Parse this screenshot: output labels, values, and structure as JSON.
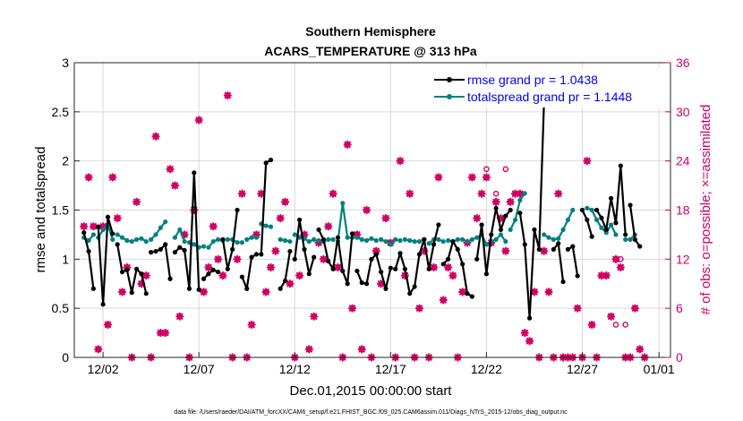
{
  "chart_data": {
    "type": "line",
    "title": "Southern Hemisphere",
    "subtitle": "ACARS_TEMPERATURE @ 313 hPa",
    "xlabel": "Dec.01,2015 00:00:00 start",
    "ylabel": "rmse and totalspread",
    "y2label": "# of obs: o=possible; ×=assimilated",
    "footer": "data file: /Users/raeder/DAI/ATM_forcXX/CAM6_setup/f.e21.FHIST_BGC.f09_025.CAM6assim.011/Diags_NTrS_2015-12/obs_diag_output.nc",
    "xlim": [
      0.5,
      31.6
    ],
    "ylim": [
      0,
      3
    ],
    "y2lim": [
      0,
      36
    ],
    "xticks": [
      {
        "value": 2,
        "label": "12/02"
      },
      {
        "value": 7,
        "label": "12/07"
      },
      {
        "value": 12,
        "label": "12/12"
      },
      {
        "value": 17,
        "label": "12/17"
      },
      {
        "value": 22,
        "label": "12/22"
      },
      {
        "value": 27,
        "label": "12/27"
      },
      {
        "value": 31,
        "label": "01/01"
      }
    ],
    "yticks": [
      "0",
      "0.5",
      "1",
      "1.5",
      "2",
      "2.5",
      "3"
    ],
    "yticks_values": [
      0,
      0.5,
      1,
      1.5,
      2,
      2.5,
      3
    ],
    "y2ticks": [
      "0",
      "6",
      "12",
      "18",
      "24",
      "30",
      "36"
    ],
    "y2ticks_values": [
      0,
      6,
      12,
      18,
      24,
      30,
      36
    ],
    "legend": {
      "location": "top-right",
      "entries": [
        "rmse grand pr = 1.0438",
        "totalspread grand pr = 1.1448"
      ]
    },
    "colors": {
      "rmse": "#000000",
      "spread": "#008080",
      "obs": "#d00063",
      "legend_text": "#0000ee"
    },
    "rmse_segments": [
      [
        [
          1.0,
          1.27
        ],
        [
          1.25,
          1.08
        ],
        [
          1.5,
          0.7
        ]
      ],
      [
        [
          1.75,
          1.33
        ],
        [
          2.0,
          0.54
        ],
        [
          2.25,
          1.43
        ],
        [
          2.5,
          1.26
        ]
      ],
      [
        [
          2.75,
          1.15
        ],
        [
          3.0,
          0.87
        ],
        [
          3.25,
          0.89
        ],
        [
          3.5,
          0.66
        ],
        [
          3.75,
          0.9
        ],
        [
          4.0,
          0.85
        ],
        [
          4.25,
          0.65
        ]
      ],
      [
        [
          4.5,
          1.07
        ],
        [
          4.75,
          1.08
        ],
        [
          5.0,
          1.1
        ],
        [
          5.25,
          1.15
        ],
        [
          5.5,
          0.8
        ]
      ],
      [
        [
          5.75,
          1.07
        ],
        [
          6.0,
          1.12
        ],
        [
          6.25,
          1.09
        ],
        [
          6.5,
          0.7
        ],
        [
          6.75,
          1.88
        ],
        [
          7.0,
          0.69
        ]
      ],
      [
        [
          7.25,
          0.8
        ],
        [
          7.5,
          0.85
        ],
        [
          7.75,
          0.89
        ],
        [
          8.0,
          0.87
        ]
      ],
      [
        [
          8.25,
          1.2
        ],
        [
          8.5,
          0.9
        ],
        [
          8.75,
          1.1
        ],
        [
          9.0,
          1.5
        ]
      ],
      [
        [
          9.25,
          0.82
        ],
        [
          9.5,
          0.7
        ],
        [
          9.75,
          1.02
        ],
        [
          10.0,
          1.05
        ]
      ],
      [
        [
          10.25,
          1.05
        ],
        [
          10.5,
          1.98
        ],
        [
          10.75,
          2.01
        ]
      ],
      [
        [
          11.25,
          0.7
        ],
        [
          11.5,
          0.78
        ],
        [
          11.75,
          1.08
        ]
      ],
      [
        [
          12.0,
          1.0
        ],
        [
          12.25,
          1.4
        ],
        [
          12.5,
          1.1
        ],
        [
          12.75,
          0.85
        ],
        [
          13.0,
          1.02
        ]
      ],
      [
        [
          13.25,
          1.3
        ],
        [
          13.5,
          1.2
        ],
        [
          13.75,
          0.98
        ],
        [
          14.0,
          0.9
        ],
        [
          14.25,
          1.22
        ],
        [
          14.5,
          0.88
        ],
        [
          14.75,
          0.75
        ],
        [
          15.0,
          1.26
        ]
      ],
      [
        [
          15.25,
          0.88
        ],
        [
          15.5,
          0.76
        ],
        [
          15.75,
          0.75
        ],
        [
          16.0,
          1.0
        ],
        [
          16.25,
          1.05
        ],
        [
          16.5,
          0.87
        ],
        [
          16.75,
          0.7
        ],
        [
          17.0,
          0.91
        ]
      ],
      [
        [
          17.25,
          0.9
        ],
        [
          17.5,
          1.06
        ],
        [
          17.75,
          0.9
        ],
        [
          18.0,
          0.65
        ],
        [
          18.25,
          0.72
        ],
        [
          18.5,
          1.05
        ],
        [
          18.75,
          1.2
        ],
        [
          19.0,
          0.9
        ],
        [
          19.25,
          1.15
        ],
        [
          19.5,
          1.35
        ]
      ],
      [
        [
          19.75,
          0.95
        ],
        [
          20.0,
          1.0
        ],
        [
          20.25,
          1.18
        ],
        [
          20.5,
          1.1
        ],
        [
          20.75,
          0.95
        ],
        [
          21.0,
          0.65
        ],
        [
          21.25,
          0.62
        ]
      ],
      [
        [
          21.5,
          1.0
        ],
        [
          21.75,
          1.35
        ],
        [
          22.0,
          0.85
        ],
        [
          22.25,
          1.25
        ],
        [
          22.5,
          1.52
        ],
        [
          22.75,
          1.3
        ],
        [
          23.0,
          1.44
        ],
        [
          23.25,
          1.5
        ]
      ],
      [
        [
          23.75,
          1.47
        ],
        [
          24.0,
          1.15
        ],
        [
          24.25,
          0.4
        ],
        [
          24.5,
          1.3
        ],
        [
          24.75,
          1.1
        ],
        [
          25.0,
          2.58
        ]
      ],
      [
        [
          25.5,
          1.1
        ],
        [
          25.75,
          1.16
        ],
        [
          26.0,
          0.77
        ]
      ],
      [
        [
          26.25,
          1.1
        ],
        [
          26.5,
          1.13
        ],
        [
          26.75,
          0.83
        ]
      ],
      [
        [
          27.0,
          1.5
        ],
        [
          27.25,
          1.4
        ],
        [
          27.5,
          1.23
        ]
      ],
      [
        [
          27.75,
          1.5
        ],
        [
          28.0,
          1.42
        ],
        [
          28.25,
          1.3
        ],
        [
          28.5,
          1.62
        ],
        [
          28.75,
          1.37
        ],
        [
          29.0,
          1.95
        ],
        [
          29.25,
          1.25
        ]
      ],
      [
        [
          29.5,
          1.55
        ],
        [
          29.75,
          1.2
        ],
        [
          30.0,
          1.13
        ]
      ]
    ],
    "spread_segments": [
      [
        [
          1.0,
          1.22
        ],
        [
          1.25,
          1.19
        ],
        [
          1.5,
          1.25
        ]
      ],
      [
        [
          1.75,
          1.22
        ],
        [
          2.0,
          1.3
        ],
        [
          2.25,
          1.35
        ],
        [
          2.5,
          1.2
        ]
      ],
      [
        [
          2.75,
          1.25
        ],
        [
          3.0,
          1.22
        ],
        [
          3.25,
          1.19
        ],
        [
          3.5,
          1.18
        ],
        [
          3.75,
          1.2
        ],
        [
          4.0,
          1.21
        ],
        [
          4.25,
          1.18
        ]
      ],
      [
        [
          4.5,
          1.2
        ],
        [
          4.75,
          1.25
        ],
        [
          5.0,
          1.32
        ],
        [
          5.25,
          1.38
        ]
      ],
      [
        [
          5.75,
          1.22
        ],
        [
          6.0,
          1.3
        ],
        [
          6.25,
          1.18
        ]
      ],
      [
        [
          6.5,
          1.17
        ],
        [
          6.75,
          1.15
        ],
        [
          7.0,
          1.12
        ],
        [
          7.25,
          1.13
        ]
      ],
      [
        [
          7.5,
          1.12
        ],
        [
          7.75,
          1.18
        ],
        [
          8.0,
          1.2
        ],
        [
          8.25,
          1.19
        ]
      ],
      [
        [
          8.5,
          1.2
        ],
        [
          8.75,
          1.2
        ],
        [
          9.0,
          1.17
        ],
        [
          9.25,
          1.17
        ]
      ],
      [
        [
          9.5,
          1.2
        ],
        [
          9.75,
          1.22
        ],
        [
          10.0,
          1.22
        ]
      ],
      [
        [
          10.25,
          1.36
        ],
        [
          10.5,
          1.34
        ],
        [
          10.75,
          1.33
        ]
      ],
      [
        [
          11.25,
          1.2
        ],
        [
          11.5,
          1.19
        ],
        [
          11.75,
          1.18
        ]
      ],
      [
        [
          12.0,
          1.25
        ],
        [
          12.25,
          1.22
        ],
        [
          12.5,
          1.21
        ],
        [
          12.75,
          1.18
        ],
        [
          13.0,
          1.2
        ]
      ],
      [
        [
          13.25,
          1.19
        ],
        [
          13.5,
          1.18
        ],
        [
          13.75,
          1.2
        ],
        [
          14.0,
          1.2
        ]
      ],
      [
        [
          14.25,
          1.18
        ],
        [
          14.5,
          1.57
        ],
        [
          14.75,
          1.22
        ],
        [
          15.0,
          1.22
        ]
      ],
      [
        [
          15.25,
          1.22
        ],
        [
          15.5,
          1.2
        ],
        [
          15.75,
          1.19
        ],
        [
          16.0,
          1.21
        ],
        [
          16.25,
          1.19
        ]
      ],
      [
        [
          16.5,
          1.2
        ],
        [
          16.75,
          1.18
        ],
        [
          17.0,
          1.15
        ],
        [
          17.25,
          1.2
        ],
        [
          17.5,
          1.19
        ]
      ],
      [
        [
          17.75,
          1.2
        ],
        [
          18.0,
          1.19
        ],
        [
          18.25,
          1.18
        ],
        [
          18.5,
          1.18
        ],
        [
          18.75,
          1.2
        ]
      ],
      [
        [
          19.0,
          1.16
        ],
        [
          19.25,
          1.2
        ],
        [
          19.5,
          1.2
        ],
        [
          19.75,
          1.18
        ]
      ],
      [
        [
          20.0,
          1.19
        ],
        [
          20.25,
          1.18
        ],
        [
          20.5,
          1.2
        ],
        [
          20.75,
          1.2
        ]
      ],
      [
        [
          21.0,
          1.18
        ],
        [
          21.25,
          1.2
        ],
        [
          21.5,
          1.22
        ],
        [
          21.75,
          1.25
        ],
        [
          22.0,
          1.15
        ]
      ],
      [
        [
          22.25,
          1.18
        ],
        [
          22.5,
          1.2
        ],
        [
          22.75,
          1.25
        ],
        [
          23.0,
          1.18
        ]
      ],
      [
        [
          23.25,
          1.3
        ],
        [
          23.5,
          1.4
        ],
        [
          23.75,
          1.6
        ],
        [
          24.0,
          1.67
        ]
      ],
      [
        [
          25.0,
          1.25
        ],
        [
          25.25,
          1.22
        ],
        [
          25.5,
          1.2
        ],
        [
          25.75,
          1.21
        ],
        [
          26.0,
          1.3
        ],
        [
          26.25,
          1.4
        ],
        [
          26.5,
          1.5
        ]
      ],
      [
        [
          27.25,
          1.52
        ],
        [
          27.5,
          1.5
        ],
        [
          27.75,
          1.4
        ],
        [
          28.0,
          1.32
        ],
        [
          28.25,
          1.27
        ],
        [
          28.5,
          1.35
        ],
        [
          28.75,
          1.25
        ]
      ],
      [
        [
          29.25,
          1.2
        ],
        [
          29.5,
          1.2
        ],
        [
          29.75,
          1.25
        ]
      ]
    ],
    "obs_assimilated": [
      [
        1.0,
        16
      ],
      [
        1.25,
        22
      ],
      [
        1.5,
        16
      ],
      [
        1.75,
        1
      ],
      [
        2.0,
        16
      ],
      [
        2.25,
        4
      ],
      [
        2.5,
        22
      ],
      [
        2.75,
        17
      ],
      [
        3.0,
        8
      ],
      [
        3.25,
        11
      ],
      [
        3.5,
        0
      ],
      [
        3.75,
        19
      ],
      [
        4.0,
        9
      ],
      [
        4.25,
        10
      ],
      [
        4.5,
        0
      ],
      [
        4.75,
        27
      ],
      [
        5.0,
        3
      ],
      [
        5.25,
        3
      ],
      [
        5.5,
        23
      ],
      [
        5.75,
        21
      ],
      [
        6.0,
        5
      ],
      [
        6.25,
        15
      ],
      [
        6.5,
        0
      ],
      [
        6.75,
        18
      ],
      [
        7.0,
        29
      ],
      [
        7.25,
        8
      ],
      [
        7.5,
        11
      ],
      [
        7.75,
        16
      ],
      [
        8.0,
        12
      ],
      [
        8.25,
        10
      ],
      [
        8.5,
        32
      ],
      [
        8.75,
        0
      ],
      [
        9.0,
        12
      ],
      [
        9.25,
        20
      ],
      [
        9.5,
        0
      ],
      [
        9.75,
        4
      ],
      [
        10.0,
        15
      ],
      [
        10.25,
        20
      ],
      [
        10.5,
        8
      ],
      [
        10.75,
        11
      ],
      [
        11.0,
        13
      ],
      [
        11.25,
        17
      ],
      [
        11.5,
        19
      ],
      [
        11.75,
        9
      ],
      [
        12.0,
        0
      ],
      [
        12.25,
        10
      ],
      [
        12.5,
        15
      ],
      [
        12.75,
        1
      ],
      [
        13.0,
        5
      ],
      [
        13.25,
        14
      ],
      [
        13.5,
        12
      ],
      [
        13.75,
        16
      ],
      [
        14.0,
        20
      ],
      [
        14.25,
        11
      ],
      [
        14.5,
        0
      ],
      [
        14.75,
        26
      ],
      [
        15.0,
        6
      ],
      [
        15.25,
        15
      ],
      [
        15.5,
        1
      ],
      [
        15.75,
        18
      ],
      [
        16.0,
        0
      ],
      [
        16.25,
        13
      ],
      [
        16.5,
        9
      ],
      [
        16.75,
        17
      ],
      [
        17.0,
        14
      ],
      [
        17.25,
        0
      ],
      [
        17.5,
        24
      ],
      [
        17.75,
        10
      ],
      [
        18.0,
        20
      ],
      [
        18.25,
        0
      ],
      [
        18.5,
        6
      ],
      [
        18.75,
        13
      ],
      [
        19.0,
        0
      ],
      [
        19.25,
        11
      ],
      [
        19.5,
        22
      ],
      [
        19.75,
        7
      ],
      [
        20.0,
        11
      ],
      [
        20.25,
        10
      ],
      [
        20.5,
        0
      ],
      [
        20.75,
        8
      ],
      [
        21.0,
        14
      ],
      [
        21.25,
        22
      ],
      [
        21.5,
        17
      ],
      [
        21.75,
        20
      ],
      [
        22.0,
        22
      ],
      [
        22.25,
        14
      ],
      [
        22.5,
        19
      ],
      [
        22.75,
        17
      ],
      [
        23.0,
        13
      ],
      [
        23.25,
        19
      ],
      [
        23.5,
        20
      ],
      [
        23.75,
        20
      ],
      [
        24.0,
        3
      ],
      [
        24.25,
        2
      ],
      [
        24.5,
        8
      ],
      [
        24.75,
        0
      ],
      [
        25.0,
        13
      ],
      [
        25.25,
        8
      ],
      [
        25.5,
        0
      ],
      [
        25.75,
        20
      ],
      [
        26.0,
        0
      ],
      [
        26.25,
        0
      ],
      [
        26.5,
        0
      ],
      [
        26.75,
        6
      ],
      [
        27.0,
        0
      ],
      [
        27.25,
        24
      ],
      [
        27.5,
        4
      ],
      [
        27.75,
        0
      ],
      [
        28.0,
        10
      ],
      [
        28.25,
        10
      ],
      [
        28.5,
        5
      ],
      [
        28.75,
        12
      ],
      [
        29.0,
        11
      ],
      [
        29.25,
        0
      ],
      [
        29.5,
        0
      ],
      [
        29.75,
        6
      ],
      [
        30.0,
        1
      ],
      [
        30.25,
        0
      ]
    ],
    "obs_possible": [
      [
        2.25,
        4
      ],
      [
        22.0,
        23
      ],
      [
        22.5,
        20
      ],
      [
        23.0,
        23
      ],
      [
        23.25,
        19
      ],
      [
        28.75,
        4
      ],
      [
        29.0,
        12
      ],
      [
        29.25,
        4
      ]
    ]
  }
}
